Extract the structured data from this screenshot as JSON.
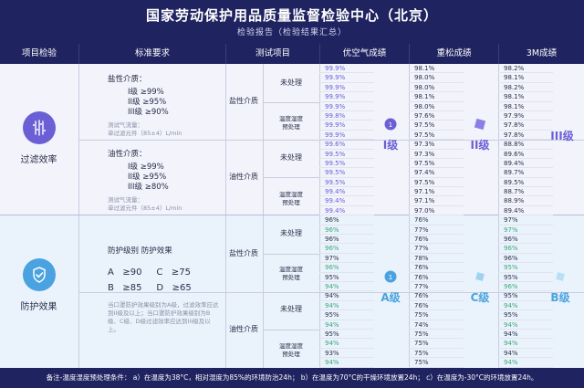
{
  "header": {
    "title": "国家劳动保护用品质量监督检验中心（北京）",
    "subtitle": "检验报告（检验结果汇总）"
  },
  "columns": [
    "项目检验",
    "标准要求",
    "测试项目",
    "优空气成绩",
    "重松成绩",
    "3M成绩"
  ],
  "categories": [
    {
      "label": "过滤效率",
      "icon": "filter-icon"
    },
    {
      "label": "防护效果",
      "icon": "shield-check-icon"
    }
  ],
  "filter_standard": {
    "salt": {
      "title": "盐性介质：",
      "levels": [
        "I级 ≥99%",
        "II级 ≥95%",
        "III级 ≥90%"
      ],
      "note1": "测试气流量：",
      "note2": "单过滤元件（85±4）L/min"
    },
    "oil": {
      "title": "油性介质：",
      "levels": [
        "I级 ≥99%",
        "II级 ≥95%",
        "III级 ≥80%"
      ],
      "note1": "测试气流量：",
      "note2": "单过滤元件（85±4）L/min"
    }
  },
  "protect_standard": {
    "head": "防护级别   防护效果",
    "rows": [
      "A   ≥90     C   ≥75",
      "B   ≥85     D   ≥65"
    ],
    "note": "当口罩防护效果级别为A级，过滤效率应达到II级及以上；当口罩防护效果级别为B级、C级、D级过滤效率应达到III级及以上。"
  },
  "test_items": {
    "salt": "盐性介质",
    "oil": "油性介质",
    "untreated": "未处理",
    "treated": "温度湿度\n预处理"
  },
  "scores": {
    "youkongqi": {
      "filter": [
        "99.9%",
        "99.9%",
        "99.9%",
        "99.9%",
        "99.9%",
        "99.8%",
        "99.9%",
        "99.9%",
        "99.6%",
        "99.5%",
        "99.5%",
        "99.5%",
        "99.5%",
        "99.4%",
        "99.4%",
        "99.4%"
      ],
      "protect": [
        "96%",
        "96%",
        "96%",
        "96%",
        "97%",
        "96%",
        "95%",
        "94%",
        "94%",
        "94%",
        "95%",
        "94%",
        "95%",
        "94%",
        "93%",
        "94%"
      ],
      "grade_filter": "I级",
      "grade_protect": "A级"
    },
    "zhongsong": {
      "filter": [
        "98.1%",
        "98.0%",
        "98.0%",
        "98.1%",
        "98.0%",
        "97.6%",
        "97.5%",
        "97.5%",
        "97.3%",
        "97.3%",
        "97.5%",
        "97.4%",
        "97.5%",
        "97.1%",
        "97.1%",
        "97.0%"
      ],
      "protect": [
        "76%",
        "77%",
        "76%",
        "77%",
        "78%",
        "76%",
        "76%",
        "77%",
        "76%",
        "76%",
        "75%",
        "74%",
        "75%",
        "75%",
        "75%",
        "75%"
      ],
      "grade_filter": "II级",
      "grade_protect": "C级"
    },
    "threem": {
      "filter": [
        "98.2%",
        "98.1%",
        "98.2%",
        "98.1%",
        "98.1%",
        "97.9%",
        "97.8%",
        "97.8%",
        "88.8%",
        "89.6%",
        "89.4%",
        "89.7%",
        "89.5%",
        "88.7%",
        "88.9%",
        "89.4%"
      ],
      "protect": [
        "97%",
        "97%",
        "96%",
        "96%",
        "96%",
        "95%",
        "95%",
        "96%",
        "95%",
        "94%",
        "95%",
        "94%",
        "94%",
        "94%",
        "94%",
        "94%"
      ],
      "grade_filter": "III级",
      "grade_protect": "B级"
    }
  },
  "footer": "备注-温度湿度预处理条件：  a）在温度为38°C，相对湿度为85%的环境防治24h；  b）在温度为70°C的干燥环境放置24h；  c）在温度为-30°C的环境放置24h。",
  "colors": {
    "navy": "#1f2360",
    "purple": "#6b5fd6",
    "blue": "#4aa3e0",
    "green": "#3aa77a"
  }
}
